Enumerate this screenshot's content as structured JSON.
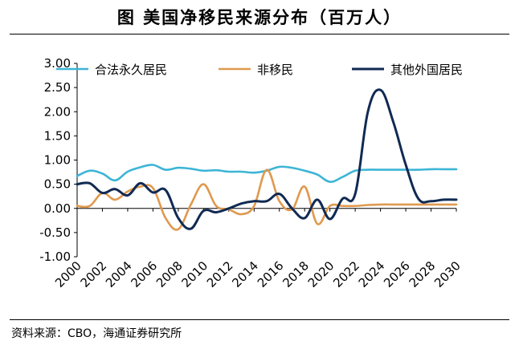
{
  "title": "图 美国净移民来源分布（百万人）",
  "source": "资料来源：CBO，海通证券研究所",
  "chart_data": {
    "type": "line",
    "title": "图 美国净移民来源分布（百万人）",
    "xlabel": "",
    "ylabel": "",
    "xlim": [
      2000,
      2030
    ],
    "ylim": [
      -1.0,
      3.0
    ],
    "x_ticks": [
      "2000",
      "2002",
      "2004",
      "2006",
      "2008",
      "2010",
      "2012",
      "2014",
      "2016",
      "2018",
      "2020",
      "2022",
      "2024",
      "2026",
      "2028",
      "2030"
    ],
    "y_ticks": [
      "3.00",
      "2.50",
      "2.00",
      "1.50",
      "1.00",
      "0.50",
      "0.00",
      "-0.50",
      "-1.00"
    ],
    "grid": false,
    "legend_position": "top",
    "series": [
      {
        "name": "合法永久居民",
        "color": "#3DB5D6",
        "x": [
          2000,
          2001,
          2002,
          2003,
          2004,
          2005,
          2006,
          2007,
          2008,
          2009,
          2010,
          2011,
          2012,
          2013,
          2014,
          2015,
          2016,
          2017,
          2018,
          2019,
          2020,
          2021,
          2022,
          2023,
          2024,
          2025,
          2026,
          2027,
          2028,
          2029,
          2030
        ],
        "values": [
          0.67,
          0.78,
          0.72,
          0.58,
          0.76,
          0.85,
          0.9,
          0.8,
          0.84,
          0.82,
          0.78,
          0.79,
          0.76,
          0.76,
          0.74,
          0.78,
          0.86,
          0.84,
          0.78,
          0.7,
          0.55,
          0.65,
          0.78,
          0.8,
          0.8,
          0.8,
          0.8,
          0.8,
          0.81,
          0.81,
          0.81
        ]
      },
      {
        "name": "非移民",
        "color": "#E0994F",
        "x": [
          2000,
          2001,
          2002,
          2003,
          2004,
          2005,
          2006,
          2007,
          2008,
          2009,
          2010,
          2011,
          2012,
          2013,
          2014,
          2015,
          2016,
          2017,
          2018,
          2019,
          2020,
          2021,
          2022,
          2023,
          2024,
          2025,
          2026,
          2027,
          2028,
          2029,
          2030
        ],
        "values": [
          0.05,
          0.05,
          0.32,
          0.18,
          0.35,
          0.45,
          0.42,
          -0.2,
          -0.43,
          0.08,
          0.5,
          0.05,
          -0.02,
          -0.12,
          0.05,
          0.8,
          0.15,
          -0.02,
          0.45,
          -0.32,
          0.05,
          0.05,
          0.05,
          0.07,
          0.08,
          0.08,
          0.08,
          0.08,
          0.08,
          0.08,
          0.08
        ]
      },
      {
        "name": "其他外国居民",
        "color": "#102A53",
        "x": [
          2000,
          2001,
          2002,
          2003,
          2004,
          2005,
          2006,
          2007,
          2008,
          2009,
          2010,
          2011,
          2012,
          2013,
          2014,
          2015,
          2016,
          2017,
          2018,
          2019,
          2020,
          2021,
          2022,
          2023,
          2024,
          2025,
          2026,
          2027,
          2028,
          2029,
          2030
        ],
        "values": [
          0.5,
          0.52,
          0.32,
          0.4,
          0.27,
          0.52,
          0.33,
          0.38,
          -0.2,
          -0.42,
          -0.05,
          -0.08,
          0.0,
          0.1,
          0.15,
          0.15,
          0.3,
          0.0,
          -0.2,
          0.18,
          -0.22,
          0.2,
          0.3,
          2.0,
          2.45,
          1.8,
          0.9,
          0.2,
          0.15,
          0.18,
          0.18
        ]
      }
    ]
  }
}
